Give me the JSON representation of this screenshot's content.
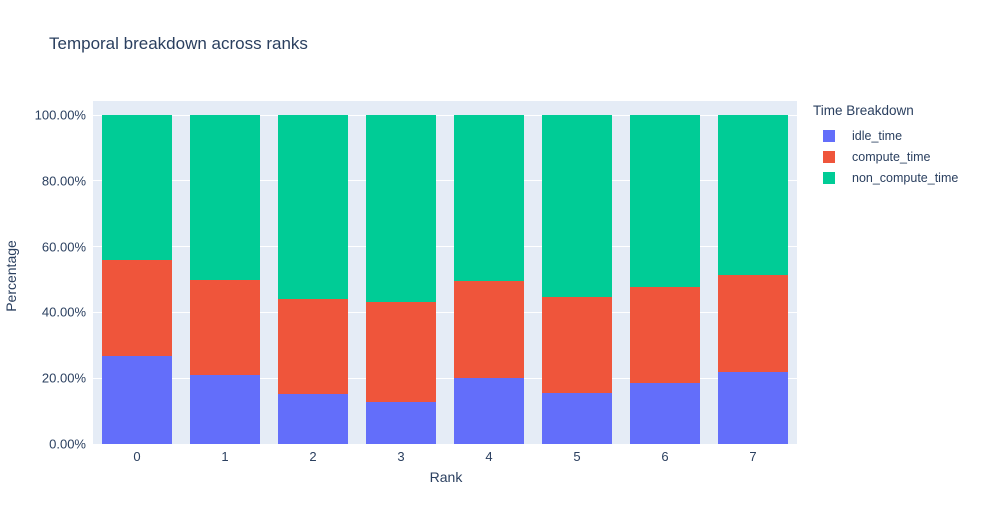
{
  "chart_data": {
    "type": "bar",
    "stacked": true,
    "orientation": "vertical",
    "title": "Temporal breakdown across ranks",
    "xlabel": "Rank",
    "ylabel": "Percentage",
    "categories": [
      "0",
      "1",
      "2",
      "3",
      "4",
      "5",
      "6",
      "7"
    ],
    "series": [
      {
        "name": "idle_time",
        "color": "#636EFA",
        "values": [
          26.7,
          21.0,
          15.1,
          12.9,
          20.2,
          15.4,
          18.4,
          21.8
        ]
      },
      {
        "name": "compute_time",
        "color": "#EF553B",
        "values": [
          29.2,
          28.8,
          29.0,
          30.2,
          29.2,
          29.2,
          29.4,
          29.6
        ]
      },
      {
        "name": "non_compute_time",
        "color": "#00CC96",
        "values": [
          44.1,
          50.2,
          55.9,
          56.9,
          50.6,
          55.4,
          52.2,
          48.6
        ]
      }
    ],
    "ylim": [
      0,
      104.3
    ],
    "yticks": [
      {
        "value": 0,
        "label": "0.00%"
      },
      {
        "value": 20,
        "label": "20.00%"
      },
      {
        "value": 40,
        "label": "40.00%"
      },
      {
        "value": 60,
        "label": "60.00%"
      },
      {
        "value": 80,
        "label": "80.00%"
      },
      {
        "value": 100,
        "label": "100.00%"
      }
    ],
    "grid": "horizontal",
    "legend_position": "right"
  },
  "legend": {
    "title": "Time Breakdown"
  },
  "colors": {
    "plot_background": "#E5ECF6",
    "gridline": "#FFFFFF",
    "text": "#2A3F5F",
    "page_background": "#FFFFFF"
  }
}
